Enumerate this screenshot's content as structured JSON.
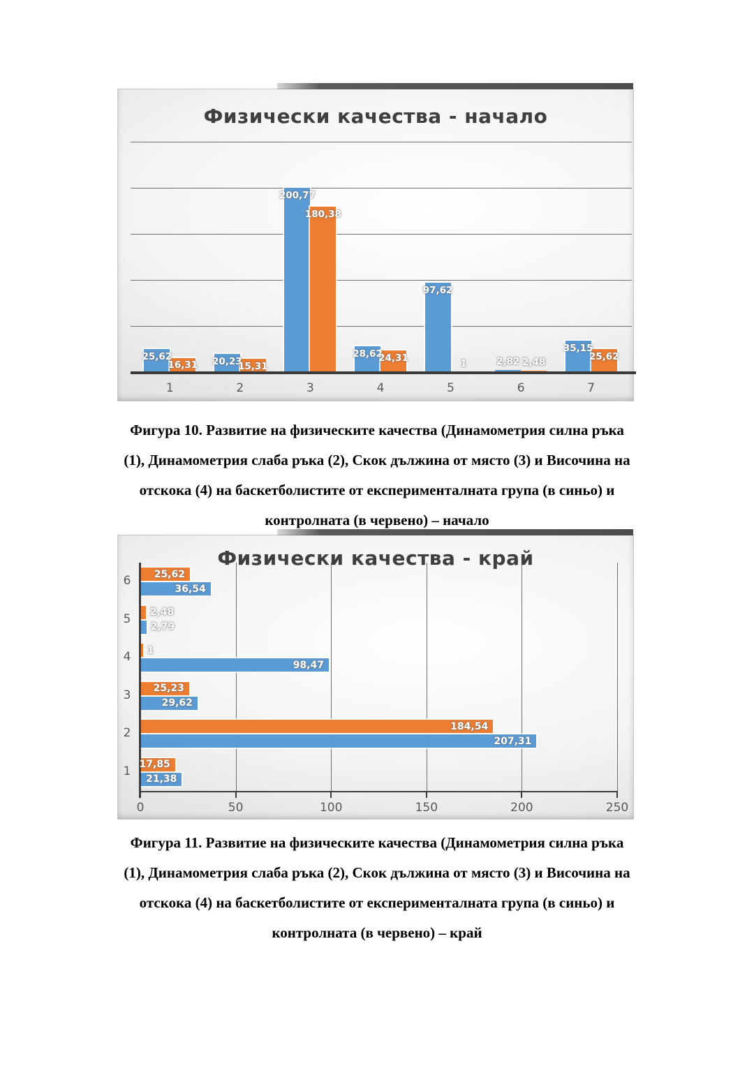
{
  "page": {
    "background": "#ffffff"
  },
  "colors": {
    "blue_series": "#5B9BD5",
    "orange_series": "#ED7D31",
    "title_text": "#3F3F3F",
    "axis_line": "#3B3B3B",
    "gridline": "#6F6F6F",
    "tick_label_text": "#595959",
    "data_label_text": "#FFFFFF"
  },
  "captions": {
    "fig10": {
      "lines": [
        "Фигура 10. Развитие на физическите качества (Динамометрия силна ръка",
        "(1), Динамометрия слаба ръка (2), Скок дължина от място (3) и Височина на",
        "отскока (4) на  баскетболистите от експерименталната група (в синьо) и",
        "контролната (в червено) – начало"
      ]
    },
    "fig11": {
      "lines": [
        "Фигура 11. Развитие на физическите качества (Динамометрия силна ръка",
        "(1), Динамометрия слаба ръка (2), Скок дължина от място (3) и Височина на",
        "отскока (4) на  баскетболистите от експерименталната група (в синьо) и",
        "контролната (в червено) – край"
      ]
    }
  },
  "chart_data": [
    {
      "type": "bar",
      "orientation": "vertical",
      "title": "Физически качества - начало",
      "categories": [
        "1",
        "2",
        "3",
        "4",
        "5",
        "6",
        "7"
      ],
      "series": [
        {
          "name": "експериментална група (в синьо)",
          "color": "#5B9BD5",
          "values": [
            25.62,
            20.23,
            200.77,
            28.62,
            97.62,
            2.82,
            35.15
          ],
          "labels": [
            "25,62",
            "20,23",
            "200,77",
            "28,62",
            "97,62",
            "2,82",
            "35,15"
          ]
        },
        {
          "name": "контролна група (в червено)",
          "color": "#ED7D31",
          "values": [
            16.31,
            15.31,
            180.38,
            24.31,
            1,
            2.48,
            25.62
          ],
          "labels": [
            "16,31",
            "15,31",
            "180,38",
            "24,31",
            "1",
            "2,48",
            "25,62"
          ]
        }
      ],
      "ylim": [
        0,
        250
      ],
      "grid_step": 50,
      "grid": true,
      "legend": "none",
      "y_axis_labels_visible": false
    },
    {
      "type": "bar",
      "orientation": "horizontal",
      "title": "Физически качества - край",
      "categories": [
        "1",
        "2",
        "3",
        "4",
        "5",
        "6"
      ],
      "series": [
        {
          "name": "контролна група (в червено)",
          "color": "#ED7D31",
          "values": [
            17.85,
            184.54,
            25.23,
            1,
            2.48,
            25.62
          ],
          "labels": [
            "17,85",
            "184,54",
            "25,23",
            "1",
            "2,48",
            "25,62"
          ]
        },
        {
          "name": "експериментална група (в синьо)",
          "color": "#5B9BD5",
          "values": [
            21.38,
            207.31,
            29.62,
            98.47,
            2.79,
            36.54
          ],
          "labels": [
            "21,38",
            "207,31",
            "29,62",
            "98,47",
            "2,79",
            "36,54"
          ]
        }
      ],
      "xlim": [
        0,
        250
      ],
      "xticks": [
        "0",
        "50",
        "100",
        "150",
        "200",
        "250"
      ],
      "grid": true,
      "legend": "none"
    }
  ]
}
